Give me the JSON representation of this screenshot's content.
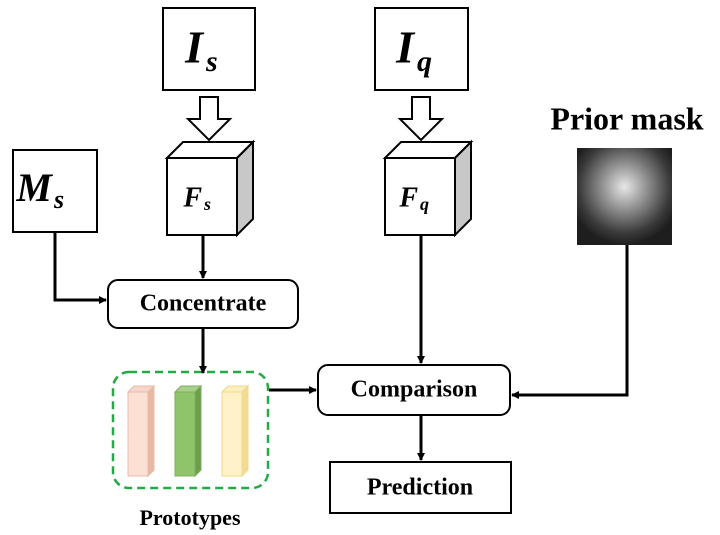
{
  "nodes": [
    {
      "label": "I",
      "subscript": "s"
    },
    {
      "label": "I",
      "subscript": "q"
    },
    {
      "label": "M",
      "subscript": "s"
    },
    {
      "label": "F",
      "subscript": "s"
    },
    {
      "label": "F",
      "subscript": "q"
    },
    {
      "label": "Prior mask"
    },
    {
      "label": "Concentrate"
    },
    {
      "label": "Comparison"
    },
    {
      "label": "Prediction"
    },
    {
      "label": "Prototypes"
    }
  ]
}
